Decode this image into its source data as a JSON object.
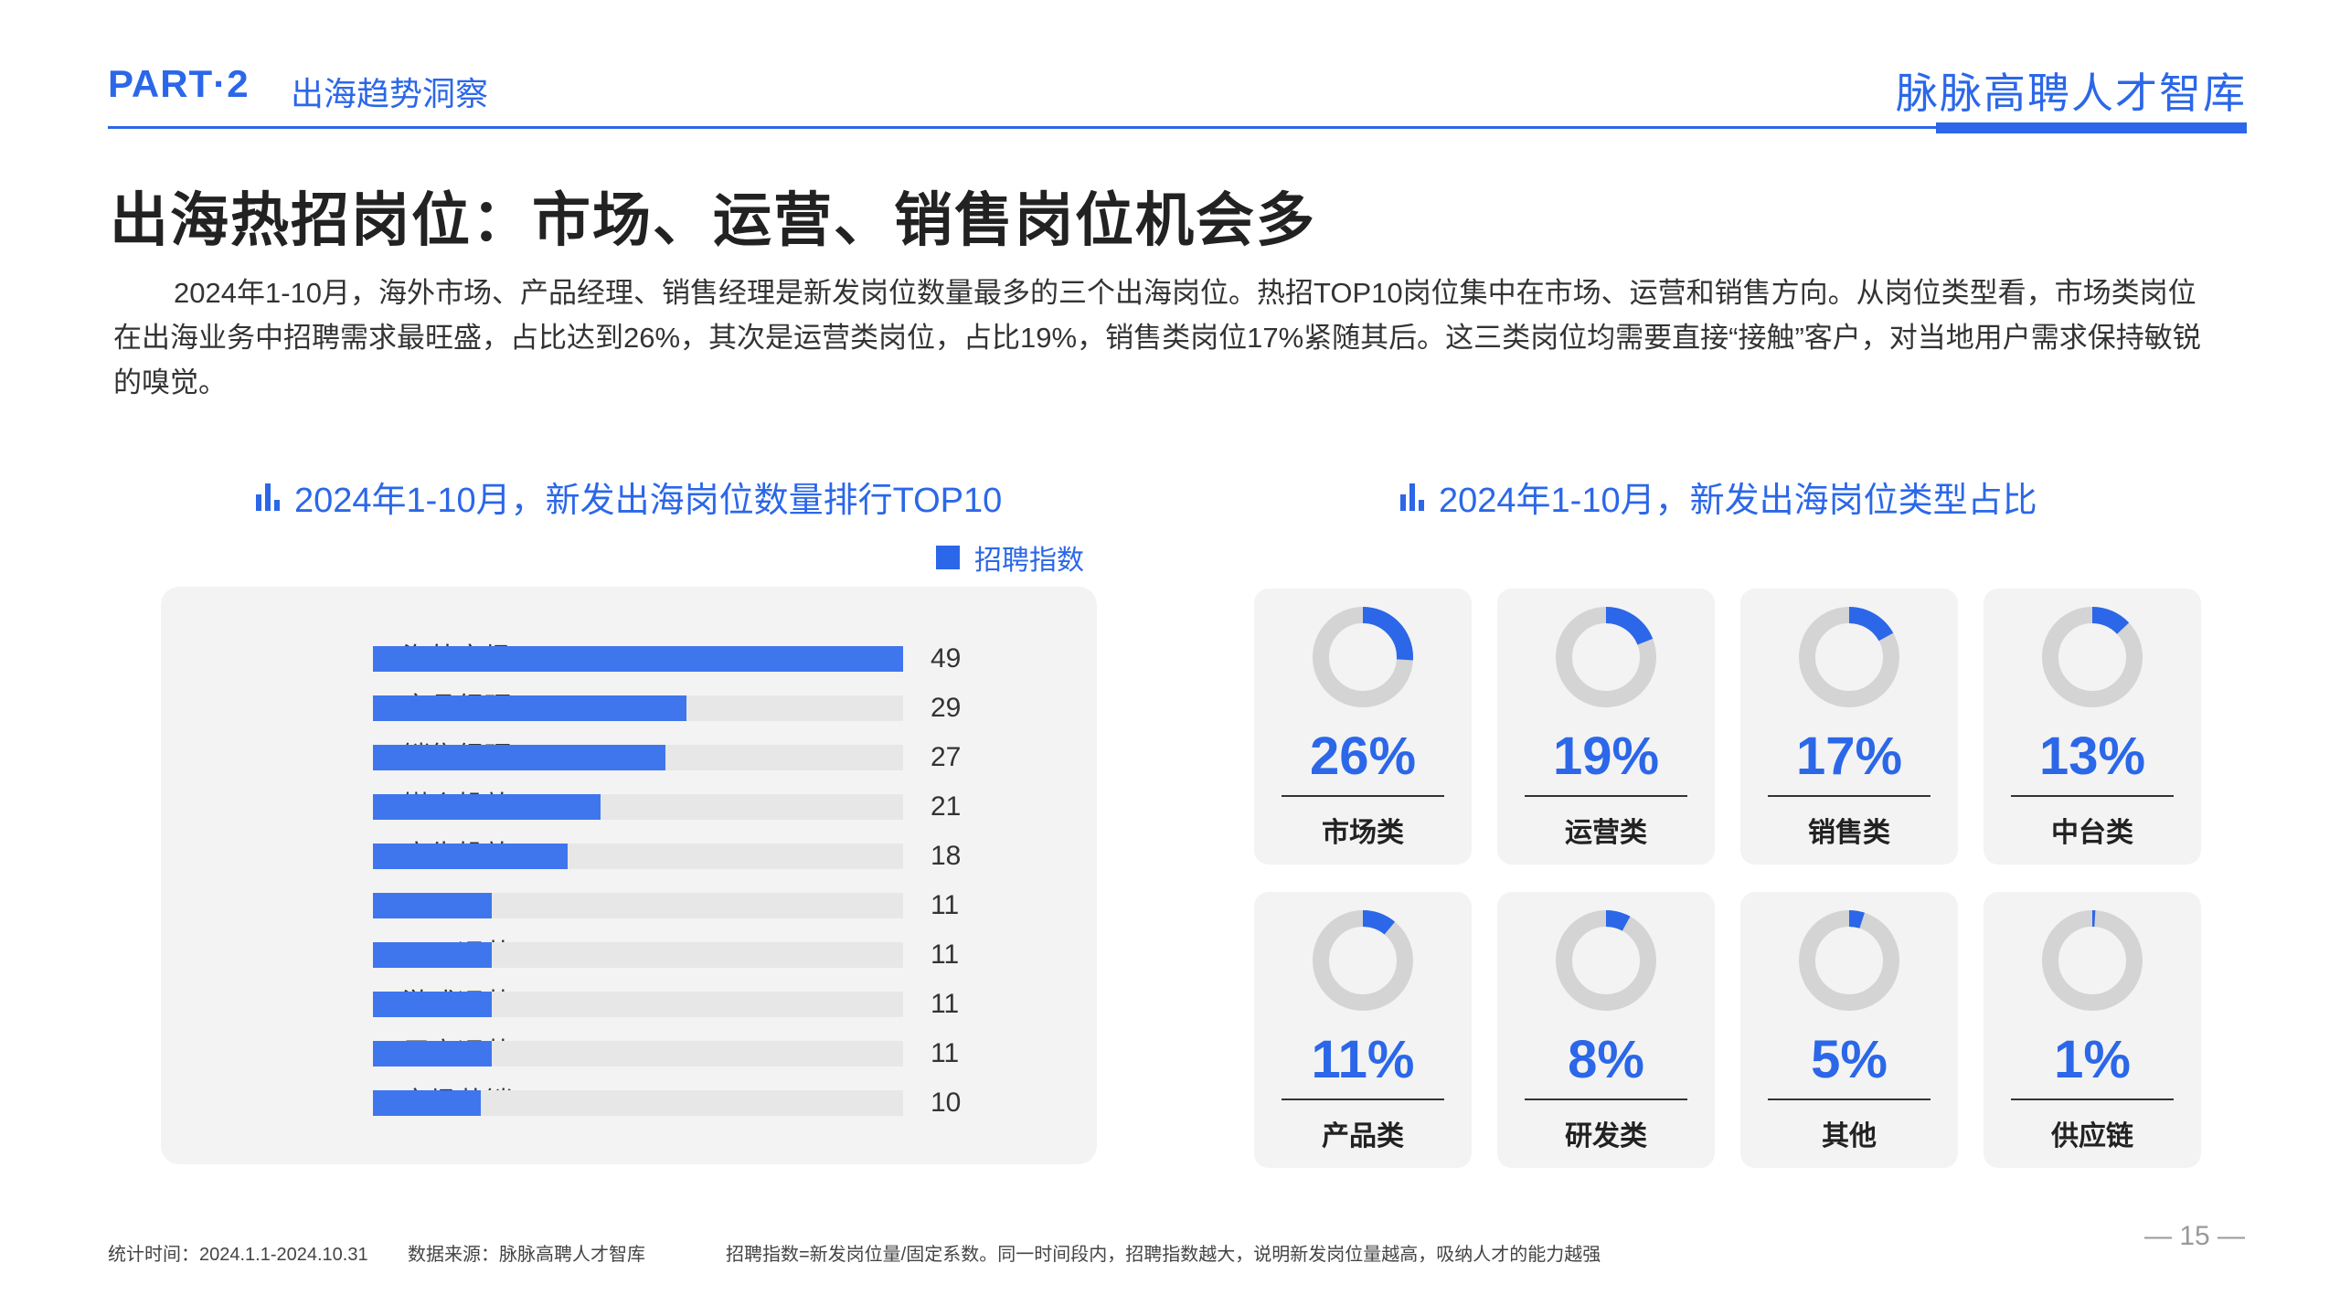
{
  "header": {
    "part": "PART·2",
    "section": "出海趋势洞察",
    "brand": "脉脉高聘人才智库"
  },
  "title": "出海热招岗位：市场、运营、销售岗位机会多",
  "intro": "2024年1-10月，海外市场、产品经理、销售经理是新发岗位数量最多的三个出海岗位。热招TOP10岗位集中在市场、运营和销售方向。从岗位类型看，市场类岗位在出海业务中招聘需求最旺盛，占比达到26%，其次是运营类岗位，占比19%，销售类岗位17%紧随其后。这三类岗位均需要直接“接触”客户，对当地用户需求保持敏锐的嗅觉。",
  "colors": {
    "accent": "#2b67e8",
    "bar": "#3f76ee",
    "track": "#e7e7e7",
    "donut_track": "#d4d4d4",
    "panel": "#f3f3f3"
  },
  "icons": {
    "chart_title_icon": "bar-chart-icon"
  },
  "chart_data": [
    {
      "type": "bar",
      "orientation": "horizontal",
      "title": "2024年1-10月，新发出海岗位数量排行TOP10",
      "legend": [
        "招聘指数"
      ],
      "legend_position": "top-right",
      "categories": [
        "海外市场",
        "产品经理",
        "销售经理",
        "媒介投放",
        "广告投放",
        "HR",
        "运营",
        "游戏运营",
        "用户运营",
        "市场营销"
      ],
      "series": [
        {
          "name": "招聘指数",
          "values": [
            49,
            29,
            27,
            21,
            18,
            11,
            11,
            11,
            11,
            10
          ]
        }
      ],
      "xlim": [
        0,
        49
      ]
    },
    {
      "type": "pie",
      "variant": "donut-grid",
      "title": "2024年1-10月，新发出海岗位类型占比",
      "categories": [
        "市场类",
        "运营类",
        "销售类",
        "中台类",
        "产品类",
        "研发类",
        "其他",
        "供应链"
      ],
      "values": [
        26,
        19,
        17,
        13,
        11,
        8,
        5,
        1
      ],
      "labels": [
        "26%",
        "19%",
        "17%",
        "13%",
        "11%",
        "8%",
        "5%",
        "1%"
      ]
    }
  ],
  "footer": {
    "time": "统计时间：2024.1.1-2024.10.31",
    "source": "数据来源：脉脉高聘人才智库",
    "note": "招聘指数=新发岗位量/固定系数。同一时间段内，招聘指数越大，说明新发岗位量越高，吸纳人才的能力越强",
    "page": "— 15 —"
  }
}
